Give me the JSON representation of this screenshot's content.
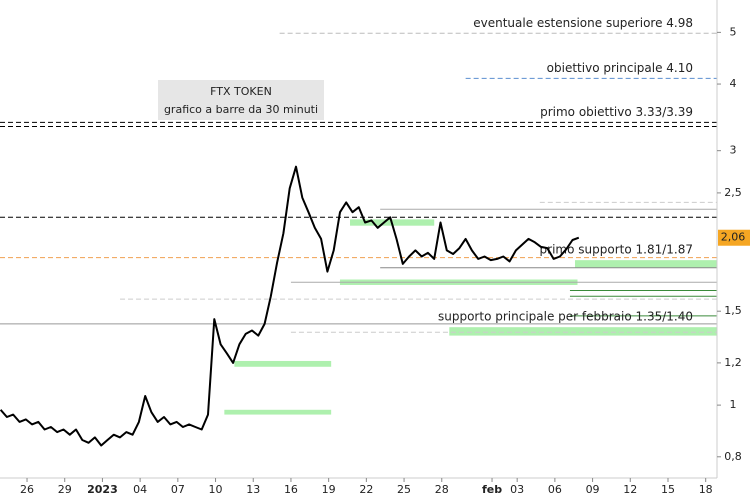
{
  "chart_data": {
    "type": "line",
    "title": "FTX TOKEN",
    "subtitle": "grafico a barre da 30 minuti",
    "color": "#000000",
    "log_scale": true,
    "x": [
      -2.1,
      -1.6,
      -1.1,
      -0.6,
      -0.1,
      0.4,
      0.9,
      1.4,
      1.9,
      2.4,
      2.9,
      3.4,
      3.9,
      4.4,
      4.9,
      5.4,
      5.9,
      6.4,
      6.9,
      7.4,
      7.9,
      8.4,
      8.9,
      9.4,
      9.9,
      10.4,
      10.9,
      11.4,
      11.9,
      12.4,
      12.9,
      13.4,
      13.9,
      14.4,
      14.9,
      15.4,
      15.9,
      16.4,
      16.9,
      17.4,
      17.9,
      18.4,
      18.9,
      19.4,
      19.9,
      20.4,
      20.9,
      21.4,
      21.9,
      22.4,
      22.9,
      23.4,
      23.9,
      24.4,
      24.9,
      25.4,
      25.9,
      26.4,
      26.9,
      27.4,
      27.9,
      28.4,
      28.9,
      29.4,
      29.9,
      30.4,
      30.9,
      31.4,
      31.9,
      32.4,
      32.9,
      33.4,
      33.9,
      34.4,
      34.9,
      35.4,
      35.9,
      36.4,
      36.9,
      37.4,
      37.9,
      38.4,
      38.9,
      39.4,
      39.9,
      40.4,
      40.9,
      41.4,
      41.9,
      42.4,
      42.9,
      43.4,
      43.9
    ],
    "values": [
      0.98,
      0.95,
      0.96,
      0.93,
      0.94,
      0.92,
      0.93,
      0.9,
      0.91,
      0.89,
      0.9,
      0.88,
      0.9,
      0.86,
      0.85,
      0.87,
      0.84,
      0.86,
      0.88,
      0.87,
      0.89,
      0.88,
      0.93,
      1.04,
      0.97,
      0.93,
      0.95,
      0.92,
      0.93,
      0.91,
      0.92,
      0.91,
      0.9,
      0.96,
      1.45,
      1.3,
      1.25,
      1.2,
      1.3,
      1.36,
      1.38,
      1.35,
      1.42,
      1.6,
      1.85,
      2.1,
      2.55,
      2.8,
      2.45,
      2.3,
      2.15,
      2.05,
      1.78,
      1.95,
      2.3,
      2.4,
      2.3,
      2.35,
      2.2,
      2.22,
      2.15,
      2.2,
      2.25,
      2.05,
      1.84,
      1.9,
      1.95,
      1.9,
      1.93,
      1.88,
      2.2,
      1.95,
      1.92,
      1.97,
      2.05,
      1.95,
      1.88,
      1.9,
      1.87,
      1.88,
      1.9,
      1.86,
      1.95,
      2.0,
      2.05,
      2.02,
      1.98,
      1.97,
      1.88,
      1.9,
      1.96,
      2.04,
      2.06
    ],
    "xlim": [
      -2.15,
      54.9
    ],
    "ylim": [
      0.73,
      5.75
    ],
    "xticks": [
      {
        "value": 0,
        "label": "26"
      },
      {
        "value": 3,
        "label": "29"
      },
      {
        "value": 6,
        "label": "2023"
      },
      {
        "value": 9,
        "label": "04"
      },
      {
        "value": 12,
        "label": "07"
      },
      {
        "value": 15,
        "label": "10"
      },
      {
        "value": 18,
        "label": "13"
      },
      {
        "value": 21,
        "label": "16"
      },
      {
        "value": 24,
        "label": "19"
      },
      {
        "value": 27,
        "label": "22"
      },
      {
        "value": 30,
        "label": "25"
      },
      {
        "value": 33,
        "label": "28"
      },
      {
        "value": 37,
        "label": "feb"
      },
      {
        "value": 39,
        "label": "03"
      },
      {
        "value": 42,
        "label": "06"
      },
      {
        "value": 45,
        "label": "09"
      },
      {
        "value": 48,
        "label": "12"
      },
      {
        "value": 51,
        "label": "15"
      },
      {
        "value": 54,
        "label": "18"
      }
    ],
    "yticks": [
      {
        "value": 0.8,
        "label": "0,8"
      },
      1,
      {
        "value": 1.2,
        "label": "1,2"
      },
      {
        "value": 1.5,
        "label": "1,5"
      },
      {
        "value": 2.5,
        "label": "2,5"
      },
      3,
      4,
      5
    ],
    "last_price": {
      "value": 2.06,
      "label": "2,06",
      "color": "#f5a623"
    },
    "levels": [
      {
        "value": 4.98,
        "from": 20.1,
        "color": "#bbbbbb",
        "dashed": true
      },
      {
        "value": 4.1,
        "from": 34.9,
        "color": "#5b8fd0",
        "dashed": true
      },
      {
        "value": 3.39,
        "from": -2.15,
        "color": "#000000",
        "dashed": true
      },
      {
        "value": 3.33,
        "from": -2.15,
        "color": "#000000",
        "dashed": true
      },
      {
        "value": 2.4,
        "from": 40.8,
        "color": "#cccccc",
        "dashed": true
      },
      {
        "value": 2.33,
        "from": 28.1,
        "color": "#aaaaaa",
        "dashed": false
      },
      {
        "value": 2.25,
        "from": -2.15,
        "color": "#000000",
        "dashed": true
      },
      {
        "value": 1.89,
        "from": -2.15,
        "color": "#f0a050",
        "dashed": true
      },
      {
        "value": 1.81,
        "from": 28.1,
        "color": "#888888",
        "dashed": false
      },
      {
        "value": 1.7,
        "from": 21,
        "color": "#aaaaaa",
        "dashed": false
      },
      {
        "value": 1.64,
        "from": 43.2,
        "color": "#3a8a3a",
        "dashed": false
      },
      {
        "value": 1.6,
        "from": 43.2,
        "color": "#3a8a3a",
        "dashed": false
      },
      {
        "value": 1.58,
        "from": 7.4,
        "color": "#cccccc",
        "dashed": true
      },
      {
        "value": 1.47,
        "from": 43.2,
        "color": "#3a8a3a",
        "dashed": false
      },
      {
        "value": 1.42,
        "from": -2.15,
        "color": "#999999",
        "dashed": false
      },
      {
        "value": 1.37,
        "from": 21,
        "color": "#cccccc",
        "dashed": true
      }
    ],
    "zones": [
      {
        "low": 2.17,
        "high": 2.23,
        "from": 25.7,
        "to": 32.4,
        "color": "#aef0ae"
      },
      {
        "low": 1.68,
        "high": 1.72,
        "from": 24.9,
        "to": 43.8,
        "color": "#aef0ae"
      },
      {
        "low": 1.81,
        "high": 1.87,
        "from": 43.6,
        "to": 54.9,
        "color": "#aef0ae"
      },
      {
        "low": 1.35,
        "high": 1.4,
        "from": 33.6,
        "to": 54.9,
        "color": "#aef0ae"
      },
      {
        "low": 1.18,
        "high": 1.21,
        "from": 16.5,
        "to": 24.2,
        "color": "#aef0ae"
      },
      {
        "low": 0.96,
        "high": 0.98,
        "from": 15.7,
        "to": 24.2,
        "color": "#aef0ae"
      }
    ],
    "annotations": [
      {
        "text": "eventuale estensione superiore 4.98",
        "value": 4.98
      },
      {
        "text": "obiettivo principale 4.10",
        "value": 4.1
      },
      {
        "text": "primo obiettivo 3.33/3.39",
        "value": 3.39
      },
      {
        "text": "primo supporto 1.81/1.87",
        "value": 1.87
      },
      {
        "text": "supporto principale per febbraio 1.35/1.40",
        "value": 1.4
      }
    ]
  }
}
